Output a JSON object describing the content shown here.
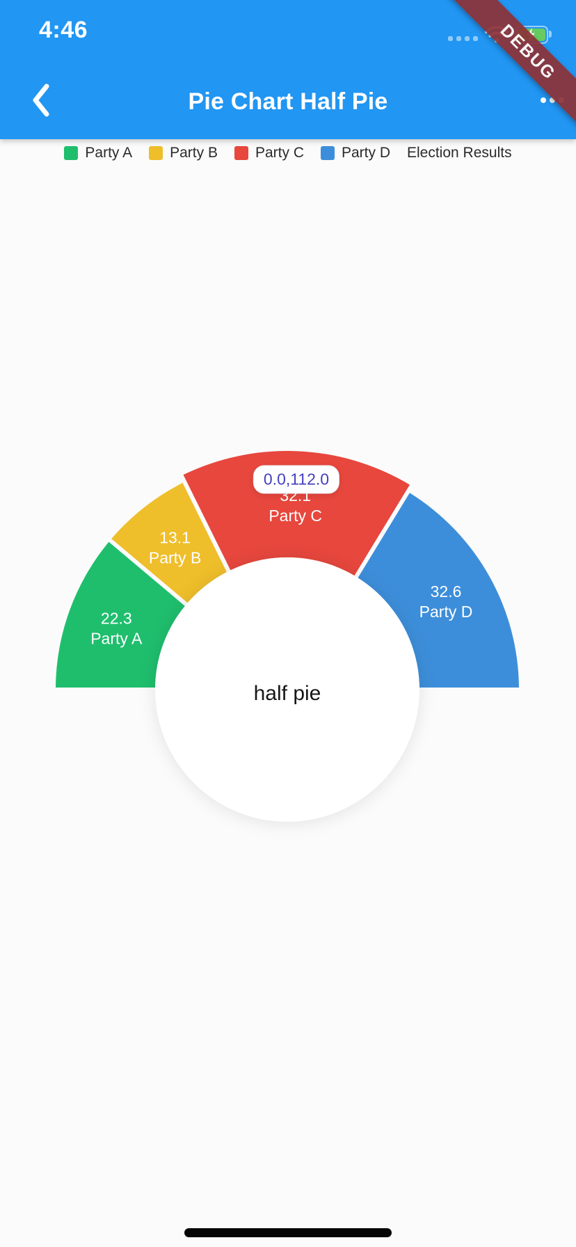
{
  "status_bar": {
    "time": "4:46",
    "debug_label": "DEBUG"
  },
  "app_bar": {
    "title": "Pie Chart Half Pie"
  },
  "legend": {
    "items": [
      {
        "label": "Party A",
        "color": "#1FBE6D"
      },
      {
        "label": "Party B",
        "color": "#EFBE2B"
      },
      {
        "label": "Party C",
        "color": "#E7473D"
      },
      {
        "label": "Party D",
        "color": "#3D8EDA"
      }
    ],
    "title": "Election Results"
  },
  "chart_data": {
    "type": "pie",
    "variant": "half-pie",
    "title": "Election Results",
    "center_label": "half pie",
    "legend_position": "top",
    "start_angle": 180,
    "sweep_angle": 180,
    "inner_radius": 190,
    "outer_radius": 333,
    "touched_outer_radius": 343,
    "tooltip": {
      "text": "0.0,112.0",
      "target_section": "Party C"
    },
    "sections": [
      {
        "name": "Party A",
        "value": 22.3,
        "color": "#1FBE6D",
        "touched": false
      },
      {
        "name": "Party B",
        "value": 13.1,
        "color": "#EFBE2B",
        "touched": false
      },
      {
        "name": "Party C",
        "value": 32.1,
        "color": "#E7473D",
        "touched": true
      },
      {
        "name": "Party D",
        "value": 32.6,
        "color": "#3D8EDA",
        "touched": false
      }
    ]
  }
}
